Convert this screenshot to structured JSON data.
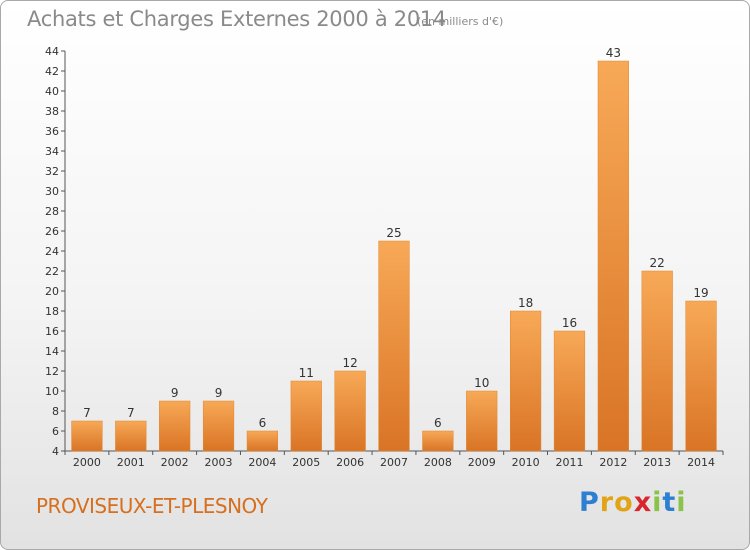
{
  "chart_data": {
    "type": "bar",
    "title": "Achats et Charges Externes 2000 à 2014",
    "subtitle": "(en milliers d'€)",
    "xlabel": "",
    "ylabel": "",
    "categories": [
      "2000",
      "2001",
      "2002",
      "2003",
      "2004",
      "2005",
      "2006",
      "2007",
      "2008",
      "2009",
      "2010",
      "2011",
      "2012",
      "2013",
      "2014"
    ],
    "values": [
      7,
      7,
      9,
      9,
      6,
      11,
      12,
      25,
      6,
      10,
      18,
      16,
      43,
      22,
      19
    ],
    "ylim": [
      4,
      44
    ],
    "yticks": [
      "4",
      "6",
      "8",
      "10",
      "12",
      "14",
      "16",
      "18",
      "20",
      "22",
      "24",
      "26",
      "28",
      "30",
      "32",
      "34",
      "36",
      "38",
      "40",
      "42",
      "44"
    ],
    "grid": false,
    "legend": "none",
    "bar_color_top": "#f7a957",
    "bar_color_bottom": "#d97425",
    "axis_color": "#555555"
  },
  "footer": {
    "place_name": "PROVISEUX-ET-PLESNOY",
    "brand_letters": [
      "P",
      "r",
      "o",
      "x",
      "i",
      "t",
      "i"
    ],
    "brand_colors": [
      "#2d7fd1",
      "#e2a316",
      "#e2a316",
      "#d9262d",
      "#8bc34a",
      "#2d7fd1",
      "#8bc34a"
    ]
  }
}
